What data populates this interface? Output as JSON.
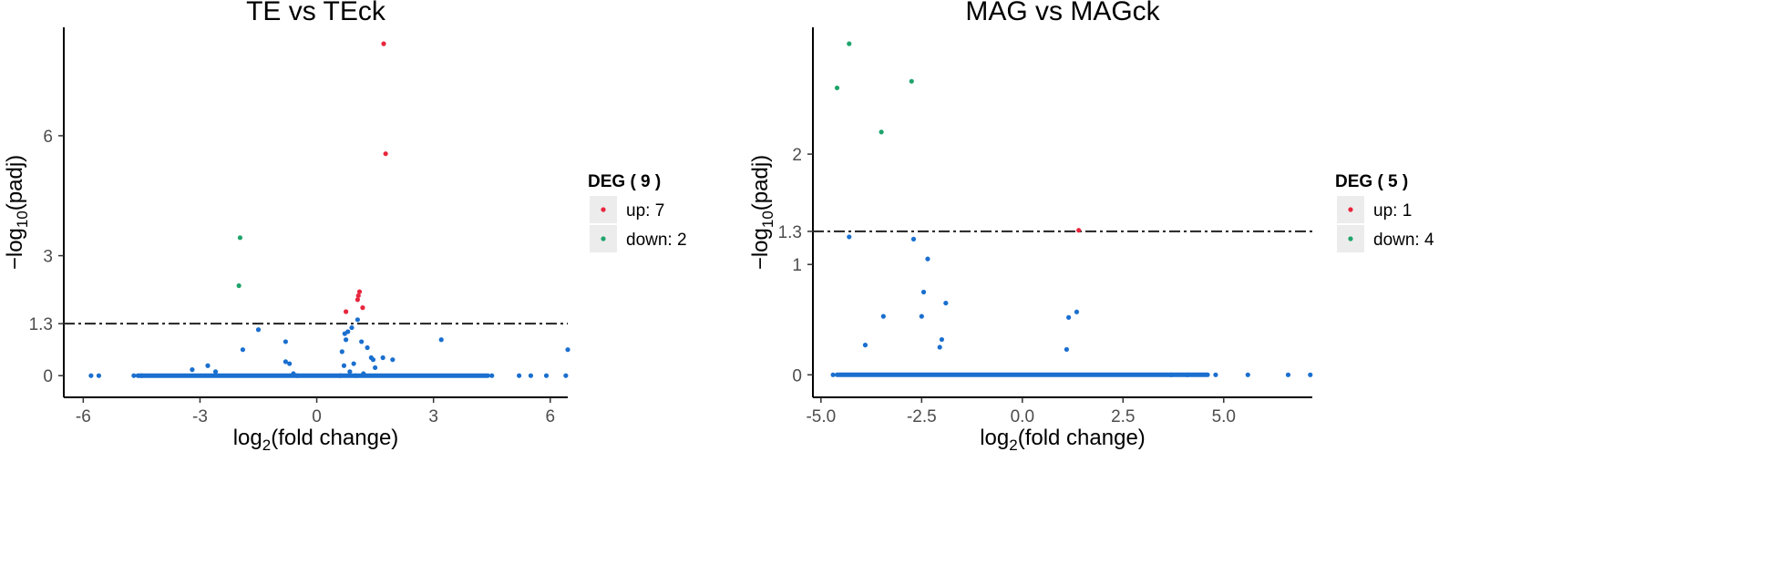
{
  "colors": {
    "up": "#e8263d",
    "down": "#1fa46b",
    "nodiff": "#1a6fcf",
    "threshold": "#222222"
  },
  "chart_data": [
    {
      "type": "scatter",
      "title": "TE vs TEck",
      "xlabel_main": "log",
      "xlabel_sub": "2",
      "xlabel_rest": "(fold change)",
      "ylabel_main": "−log",
      "ylabel_sub": "10",
      "ylabel_rest": "(padj)",
      "xlim": [
        -6.5,
        6.45
      ],
      "ylim": [
        -0.2,
        8.3
      ],
      "xticks": [
        -6,
        -3,
        0,
        3,
        6
      ],
      "xtick_labels": [
        "-6",
        "-3",
        "0",
        "3",
        "6"
      ],
      "yticks": [
        0,
        1.3,
        3,
        6
      ],
      "ytick_labels": [
        "0",
        "1.3",
        "3",
        "6"
      ],
      "threshold": 1.3,
      "legend": {
        "title": "DEG ( 9 )",
        "up_label": "up: 7",
        "down_label": "down: 2"
      },
      "series": [
        {
          "name": "up",
          "x": [
            1.72,
            1.77,
            0.75,
            1.07,
            1.1,
            1.05,
            1.18
          ],
          "y": [
            8.3,
            5.55,
            1.6,
            2.0,
            2.1,
            1.9,
            1.7
          ]
        },
        {
          "name": "down",
          "x": [
            -1.97,
            -2.0
          ],
          "y": [
            3.45,
            2.25
          ]
        },
        {
          "name": "nodiff",
          "x": [
            -5.8,
            -5.6,
            -4.7,
            -4.5,
            -3.2,
            -2.8,
            -2.6,
            -1.9,
            -1.5,
            -0.8,
            -0.8,
            -0.7,
            -0.6,
            0.65,
            0.7,
            0.72,
            0.75,
            0.8,
            0.85,
            0.9,
            0.95,
            1.05,
            1.15,
            1.3,
            1.45,
            1.5,
            1.2,
            1.4,
            1.7,
            1.95,
            3.2,
            4.5,
            5.2,
            5.5,
            5.9,
            6.45,
            6.4,
            -0.5,
            0.6,
            1.0
          ],
          "y": [
            0,
            0,
            0,
            0,
            0.15,
            0.25,
            0.1,
            0.65,
            1.15,
            0.85,
            0.35,
            0.3,
            0.05,
            0.6,
            0.25,
            1.05,
            0.9,
            1.1,
            0.1,
            1.2,
            0.3,
            1.4,
            0.85,
            0.7,
            0.4,
            0.2,
            0.05,
            0.45,
            0.45,
            0.4,
            0.9,
            0,
            0,
            0,
            0,
            0.65,
            0,
            0,
            0,
            0
          ]
        }
      ],
      "baseline_band": [
        -4.6,
        4.4
      ]
    },
    {
      "type": "scatter",
      "title": "MAG vs MAGck",
      "xlabel_main": "log",
      "xlabel_sub": "2",
      "xlabel_rest": "(fold change)",
      "ylabel_main": "−log",
      "ylabel_sub": "10",
      "ylabel_rest": "(padj)",
      "xlim": [
        -5.2,
        7.2
      ],
      "ylim": [
        -0.08,
        3.0
      ],
      "xticks": [
        -5.0,
        -2.5,
        0.0,
        2.5,
        5.0
      ],
      "xtick_labels": [
        "-5.0",
        "-2.5",
        "0.0",
        "2.5",
        "5.0"
      ],
      "yticks": [
        0,
        1,
        1.3,
        2
      ],
      "ytick_labels": [
        "0",
        "1",
        "1.3",
        "2"
      ],
      "threshold": 1.3,
      "legend": {
        "title": "DEG ( 5 )",
        "up_label": "up: 1",
        "down_label": "down: 4"
      },
      "series": [
        {
          "name": "up",
          "x": [
            1.4
          ],
          "y": [
            1.31
          ]
        },
        {
          "name": "down",
          "x": [
            -4.3,
            -4.6,
            -2.75,
            -3.5
          ],
          "y": [
            3.0,
            2.6,
            2.66,
            2.2
          ]
        },
        {
          "name": "nodiff",
          "x": [
            -4.3,
            -2.7,
            -2.35,
            -2.45,
            -1.9,
            -3.45,
            -2.5,
            -3.9,
            -2.0,
            -2.05,
            1.15,
            1.35,
            1.1,
            -4.7,
            4.8,
            5.6,
            6.6,
            7.15,
            3.7,
            4.1
          ],
          "y": [
            1.25,
            1.23,
            1.05,
            0.75,
            0.65,
            0.53,
            0.53,
            0.27,
            0.32,
            0.25,
            0.52,
            0.57,
            0.23,
            0,
            0,
            0,
            0,
            0,
            0,
            0
          ]
        }
      ],
      "baseline_band": [
        -4.6,
        4.6
      ]
    }
  ]
}
